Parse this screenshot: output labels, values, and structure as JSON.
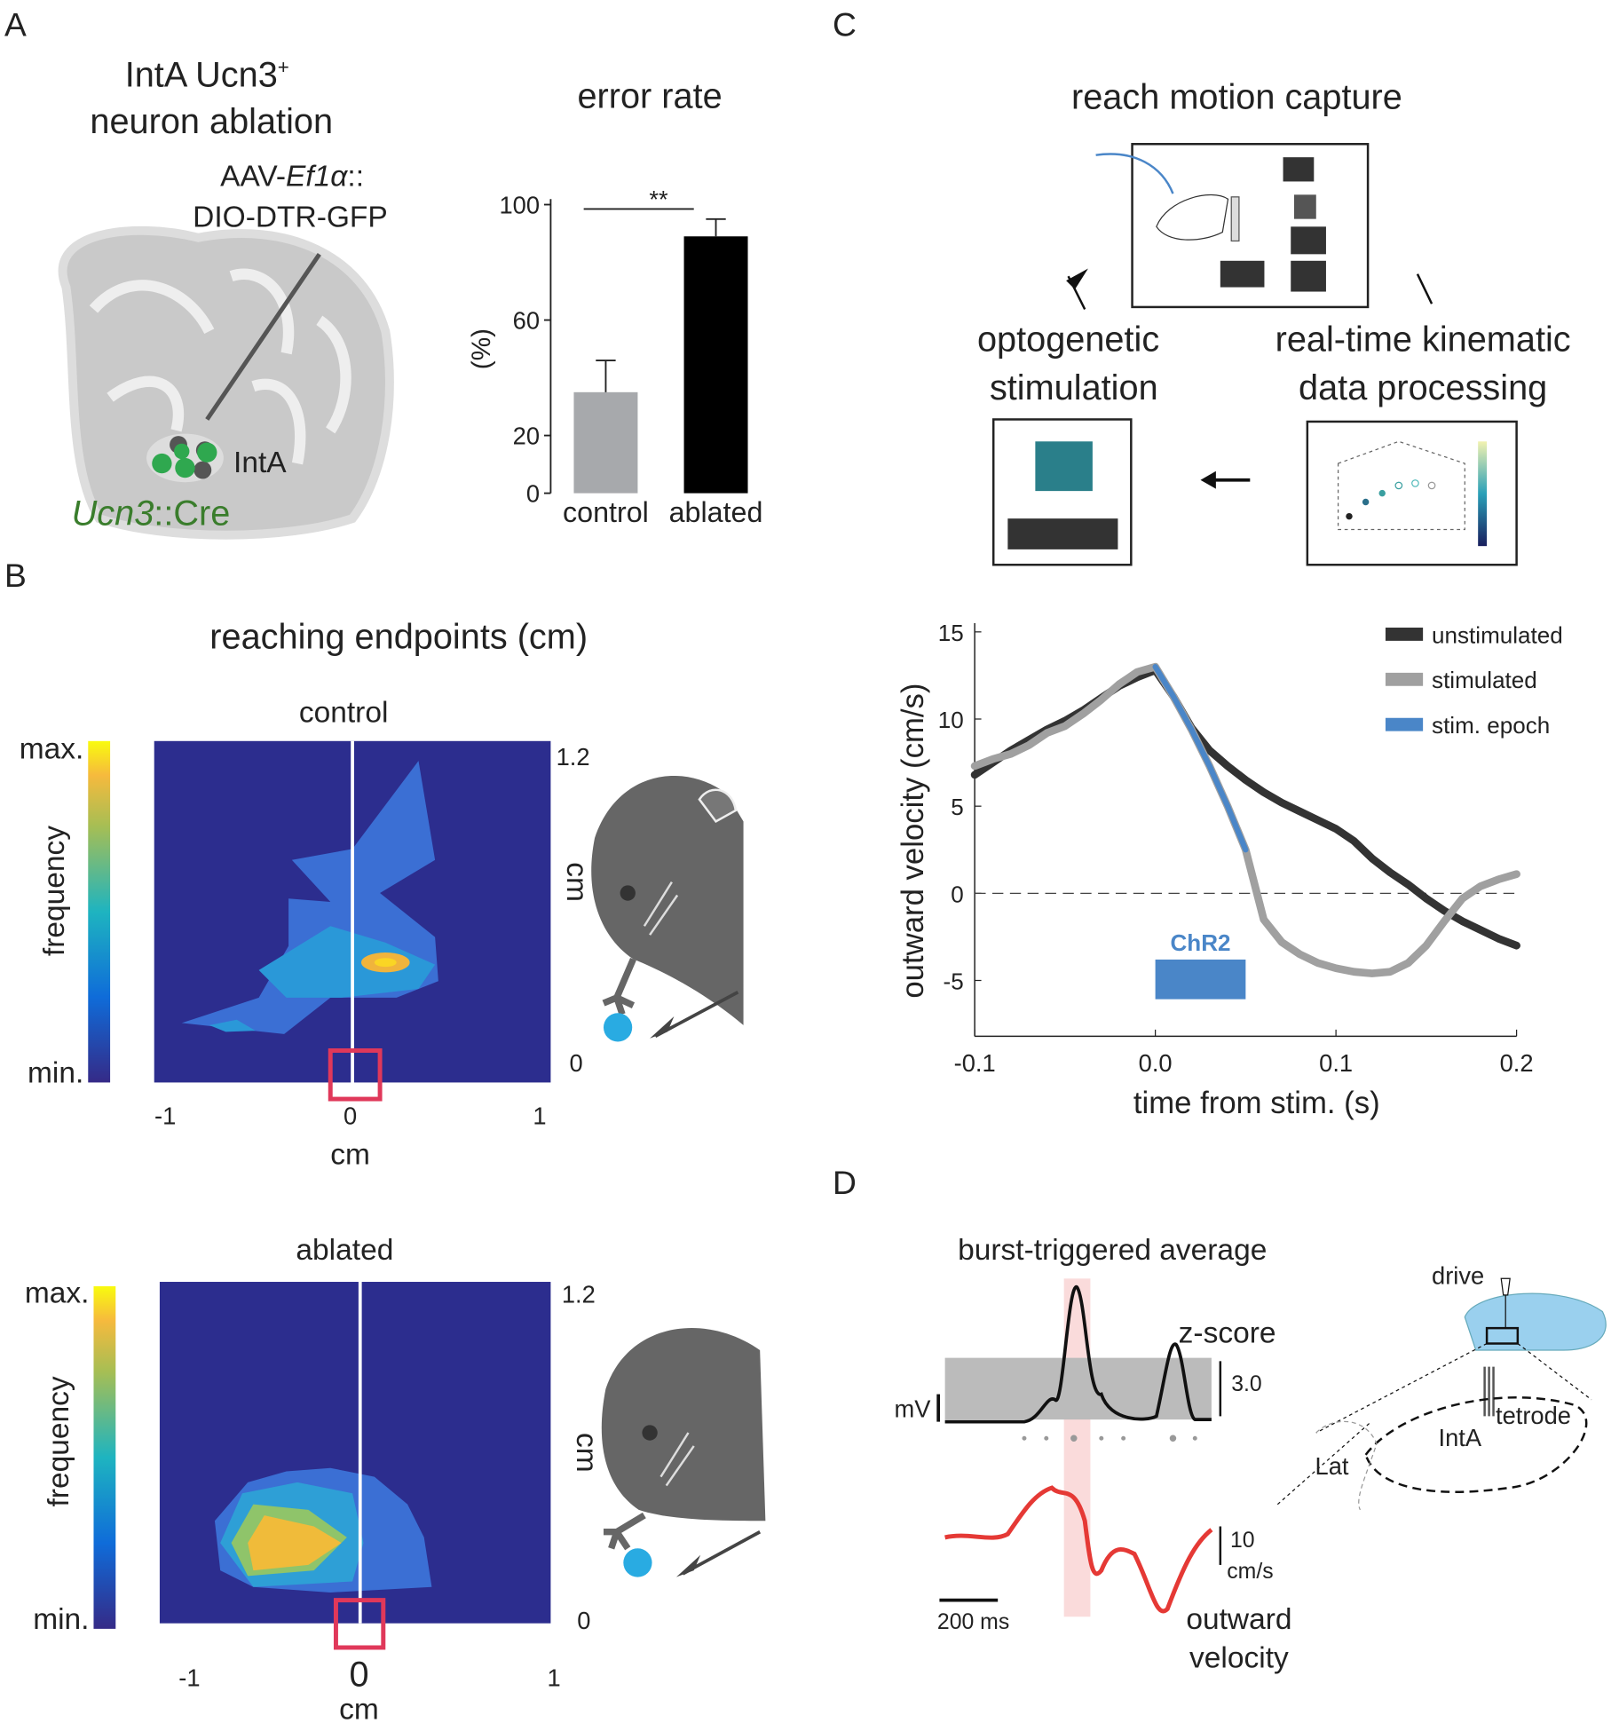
{
  "panels": {
    "a": {
      "label": "A",
      "title_line1": "IntA Ucn3",
      "title_sup": "+",
      "title_line2": "neuron ablation",
      "virus_prefix": "AAV-",
      "virus_promoter": "Ef1α",
      "virus_suffix": "::",
      "virus_line2": "DIO-DTR-GFP",
      "nucleus": "IntA",
      "driver_gene": "Ucn3",
      "driver_suffix": "::Cre"
    },
    "b": {
      "label": "B",
      "title": "reaching endpoints (cm)",
      "heatmaps": [
        {
          "title": "control",
          "cbar_max": "max.",
          "cbar_min": "min.",
          "cbar_label": "frequency",
          "x_ticks": [
            "-1",
            "0",
            "1"
          ],
          "x_label": "cm",
          "y_ticks": [
            "1.2",
            "0"
          ],
          "y_label": "cm"
        },
        {
          "title": "ablated",
          "cbar_max": "max.",
          "cbar_min": "min.",
          "cbar_label": "frequency",
          "x_ticks": [
            "-1",
            "0",
            "1"
          ],
          "x_label": "cm",
          "y_ticks": [
            "1.2",
            "0"
          ],
          "y_label": "cm"
        }
      ]
    },
    "c": {
      "label": "C",
      "capture": "reach motion capture",
      "stim_line1": "optogenetic",
      "stim_line2": "stimulation",
      "proc_line1": "real-time kinematic",
      "proc_line2": "data processing"
    },
    "d": {
      "label": "D",
      "title": "burst-triggered average",
      "zscore": "z-score",
      "zscale": "3.0",
      "mv": "mV",
      "vscale": "10",
      "vunit": "cm/s",
      "timescale": "200 ms",
      "vel_line1": "outward",
      "vel_line2": "velocity",
      "drive": "drive",
      "tetrode": "tetrode",
      "inta": "IntA",
      "lat": "Lat"
    }
  },
  "chart_data": [
    {
      "type": "bar",
      "title": "error rate",
      "y_label": "(%)",
      "categories": [
        "control",
        "ablated"
      ],
      "values": [
        35,
        89
      ],
      "errors": [
        11,
        6
      ],
      "colors": [
        "#a7a9ac",
        "#000000"
      ],
      "ylim": [
        0,
        100
      ],
      "yticks": [
        0,
        20,
        60,
        100
      ],
      "significance": "**"
    },
    {
      "type": "line",
      "x_label": "time from stim. (s)",
      "y_label": "outward velocity (cm/s)",
      "xlim": [
        -0.1,
        0.2
      ],
      "ylim": [
        -8.2,
        15.5
      ],
      "xticks": [
        -0.1,
        {
          "value": 0,
          "label": "0.0"
        },
        0.1,
        0.2
      ],
      "yticks": [
        -5,
        0,
        5,
        10,
        15
      ],
      "zero_line": true,
      "x": [
        -0.1,
        -0.09,
        -0.08,
        -0.07,
        -0.06,
        -0.05,
        -0.04,
        -0.03,
        -0.02,
        -0.01,
        0,
        0.01,
        0.02,
        0.03,
        0.04,
        0.05,
        0.06,
        0.07,
        0.08,
        0.09,
        0.1,
        0.11,
        0.12,
        0.13,
        0.14,
        0.15,
        0.16,
        0.17,
        0.18,
        0.19,
        0.2
      ],
      "series": [
        {
          "name": "unstimulated",
          "color": "#333333",
          "values": [
            6.8,
            7.5,
            8.2,
            8.8,
            9.4,
            9.9,
            10.5,
            11.2,
            11.9,
            12.4,
            12.8,
            11.3,
            9.5,
            8.2,
            7.3,
            6.5,
            5.8,
            5.2,
            4.7,
            4.2,
            3.7,
            3.0,
            2.0,
            1.2,
            0.5,
            -0.3,
            -1.0,
            -1.6,
            -2.1,
            -2.6,
            -3.0
          ]
        },
        {
          "name": "stimulated",
          "color": "#a0a0a0",
          "values": [
            7.3,
            7.7,
            8.0,
            8.5,
            9.2,
            9.6,
            10.3,
            11.1,
            12.0,
            12.7,
            13.0,
            11.3,
            9.4,
            7.3,
            5.0,
            2.5,
            -1.5,
            -2.8,
            -3.5,
            -4.0,
            -4.3,
            -4.5,
            -4.6,
            -4.5,
            -4.0,
            -3.0,
            -1.6,
            -0.3,
            0.4,
            0.8,
            1.1
          ]
        },
        {
          "name": "stim. epoch",
          "color": "#4a86c8",
          "values": [
            null,
            null,
            null,
            null,
            null,
            null,
            null,
            null,
            null,
            null,
            13.0,
            11.3,
            9.4,
            7.3,
            5.0,
            2.5,
            null,
            null,
            null,
            null,
            null,
            null,
            null,
            null,
            null,
            null,
            null,
            null,
            null,
            null,
            null
          ]
        }
      ],
      "stim_bar": {
        "label": "ChR2",
        "start": 0,
        "end": 0.05,
        "color": "#4a86c8"
      }
    }
  ]
}
